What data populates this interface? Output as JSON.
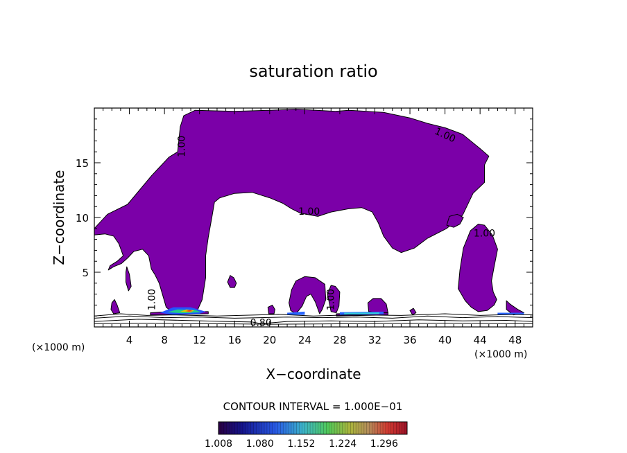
{
  "chart_data": {
    "type": "heatmap",
    "title": "saturation ratio",
    "xlabel": "X−coordinate",
    "ylabel": "Z−coordinate",
    "x_unit_left": "(×1000 m)",
    "x_unit_right": "(×1000 m)",
    "xlim": [
      0,
      50
    ],
    "ylim": [
      0,
      20
    ],
    "x_ticks": [
      4,
      8,
      12,
      16,
      20,
      24,
      28,
      32,
      36,
      40,
      44,
      48
    ],
    "y_ticks": [
      5,
      10,
      15
    ],
    "x_tick_labels": [
      "4",
      "8",
      "12",
      "16",
      "20",
      "24",
      "28",
      "32",
      "36",
      "40",
      "44",
      "48"
    ],
    "y_tick_labels": [
      "5",
      "10",
      "15"
    ],
    "contour_interval_text": "CONTOUR INTERVAL = 1.000E−01",
    "colorbar": {
      "min": 1.008,
      "max": 1.336,
      "tick_values": [
        1.008,
        1.08,
        1.152,
        1.224,
        1.296
      ],
      "tick_labels": [
        "1.008",
        "1.080",
        "1.152",
        "1.224",
        "1.296"
      ]
    },
    "contour_labels": [
      {
        "text": "1.00",
        "x": 10.0,
        "z": 16.5,
        "rotate": -90
      },
      {
        "text": "1.00",
        "x": 40.0,
        "z": 17.5,
        "rotate": 25
      },
      {
        "text": "1.00",
        "x": 24.5,
        "z": 10.5,
        "rotate": 0
      },
      {
        "text": "1.00",
        "x": 44.5,
        "z": 8.5,
        "rotate": 0
      },
      {
        "text": "1.00",
        "x": 6.6,
        "z": 2.5,
        "rotate": -90
      },
      {
        "text": "1.00",
        "x": 27.0,
        "z": 2.5,
        "rotate": -90
      },
      {
        "text": "0.80",
        "x": 19.0,
        "z": 0.35,
        "rotate": 0
      }
    ],
    "regions": [
      {
        "name": "upper-cloud",
        "value": 1.008,
        "color": "#7b00a8",
        "points": [
          [
            0,
            9
          ],
          [
            1.5,
            10.3
          ],
          [
            3.8,
            11.2
          ],
          [
            6.5,
            13.8
          ],
          [
            8.5,
            15.5
          ],
          [
            9.5,
            16
          ],
          [
            9.8,
            18.3
          ],
          [
            10.2,
            19.3
          ],
          [
            11.5,
            19.8
          ],
          [
            16,
            19.7
          ],
          [
            20,
            19.8
          ],
          [
            23,
            19.9
          ],
          [
            27.5,
            19.7
          ],
          [
            29,
            19.8
          ],
          [
            33,
            19.6
          ],
          [
            36,
            19.1
          ],
          [
            38,
            18.6
          ],
          [
            40,
            18.2
          ],
          [
            42,
            17.6
          ],
          [
            44,
            16.3
          ],
          [
            45,
            15.6
          ],
          [
            44.5,
            14.8
          ],
          [
            44.5,
            13.2
          ],
          [
            43.2,
            12.2
          ],
          [
            42,
            10.2
          ],
          [
            40.2,
            9
          ],
          [
            38,
            8.1
          ],
          [
            36.5,
            7.2
          ],
          [
            35,
            6.8
          ],
          [
            34,
            7.2
          ],
          [
            33,
            8.3
          ],
          [
            32.4,
            9.5
          ],
          [
            31.7,
            10.5
          ],
          [
            30.5,
            10.9
          ],
          [
            29,
            10.8
          ],
          [
            27,
            10.5
          ],
          [
            25.5,
            10.1
          ],
          [
            23.5,
            10.4
          ],
          [
            22.5,
            10.8
          ],
          [
            21.5,
            11.3
          ],
          [
            20,
            11.8
          ],
          [
            18,
            12.3
          ],
          [
            16,
            12.2
          ],
          [
            14.3,
            11.8
          ],
          [
            13.7,
            11.4
          ],
          [
            13.4,
            10
          ],
          [
            13,
            8.2
          ],
          [
            12.7,
            6.5
          ],
          [
            12.7,
            4.5
          ],
          [
            12.3,
            2.5
          ],
          [
            11.8,
            1.6
          ],
          [
            11,
            1.3
          ],
          [
            9,
            1.3
          ],
          [
            8.2,
            1.8
          ],
          [
            7.8,
            2.9
          ],
          [
            7.4,
            4
          ],
          [
            6.9,
            4.8
          ],
          [
            6.5,
            5.3
          ],
          [
            6.2,
            6.5
          ],
          [
            5.5,
            7.1
          ],
          [
            4.5,
            6.9
          ],
          [
            3.8,
            6.3
          ],
          [
            3.1,
            5.8
          ],
          [
            2.2,
            5.5
          ],
          [
            1.6,
            5.2
          ],
          [
            1.8,
            5.6
          ],
          [
            2.6,
            6
          ],
          [
            3.3,
            6.5
          ],
          [
            2.8,
            7.6
          ],
          [
            2.2,
            8.3
          ],
          [
            1.2,
            8.5
          ],
          [
            0,
            8.4
          ]
        ]
      },
      {
        "name": "patch-1",
        "value": 1.008,
        "color": "#7b00a8",
        "points": [
          [
            3.7,
            5.5
          ],
          [
            4,
            4.8
          ],
          [
            4.2,
            3.7
          ],
          [
            3.9,
            3.3
          ],
          [
            3.6,
            4.1
          ],
          [
            3.6,
            5
          ]
        ]
      },
      {
        "name": "patch-2",
        "value": 1.008,
        "color": "#7b00a8",
        "points": [
          [
            15.5,
            4.7
          ],
          [
            15.9,
            4.5
          ],
          [
            16.2,
            4
          ],
          [
            16,
            3.6
          ],
          [
            15.5,
            3.6
          ],
          [
            15.2,
            4.1
          ]
        ]
      },
      {
        "name": "patch-3",
        "value": 1.008,
        "color": "#7b00a8",
        "points": [
          [
            22.5,
            3.4
          ],
          [
            23,
            4.2
          ],
          [
            24,
            4.6
          ],
          [
            25.2,
            4.5
          ],
          [
            26.3,
            3.9
          ],
          [
            26.4,
            2.5
          ],
          [
            26,
            1.6
          ],
          [
            25.7,
            1.2
          ],
          [
            25.2,
            2.3
          ],
          [
            24.7,
            3
          ],
          [
            24.2,
            2.8
          ],
          [
            23.7,
            1.9
          ],
          [
            23,
            1.2
          ],
          [
            22.4,
            1.5
          ],
          [
            22.2,
            2.2
          ]
        ]
      },
      {
        "name": "patch-4",
        "value": 1.008,
        "color": "#7b00a8",
        "points": [
          [
            26.6,
            3
          ],
          [
            27,
            3.8
          ],
          [
            27.5,
            3.7
          ],
          [
            28,
            3.2
          ],
          [
            27.9,
            1.9
          ],
          [
            27.6,
            1.3
          ],
          [
            27,
            1.4
          ]
        ]
      },
      {
        "name": "patch-5",
        "value": 1.008,
        "color": "#7b00a8",
        "points": [
          [
            31.2,
            2.2
          ],
          [
            31.8,
            2.6
          ],
          [
            32.7,
            2.6
          ],
          [
            33.3,
            2.1
          ],
          [
            33.5,
            1.3
          ],
          [
            32.3,
            1.3
          ],
          [
            31.3,
            1.4
          ]
        ]
      },
      {
        "name": "patch-6",
        "value": 1.008,
        "color": "#7b00a8",
        "points": [
          [
            40.2,
            9.3
          ],
          [
            40.5,
            10.1
          ],
          [
            41.4,
            10.3
          ],
          [
            42.1,
            10
          ],
          [
            41.7,
            9.4
          ],
          [
            41,
            9.1
          ]
        ]
      },
      {
        "name": "right-cloud",
        "value": 1.008,
        "color": "#7b00a8",
        "points": [
          [
            41.5,
            3.5
          ],
          [
            41.7,
            5.2
          ],
          [
            42.1,
            7.2
          ],
          [
            42.9,
            8.8
          ],
          [
            43.8,
            9.4
          ],
          [
            44.5,
            9.3
          ],
          [
            45.4,
            8.4
          ],
          [
            46,
            7.1
          ],
          [
            45.6,
            5.5
          ],
          [
            45.3,
            4.2
          ],
          [
            45.5,
            3.2
          ],
          [
            45.9,
            2.5
          ],
          [
            45.6,
            2
          ],
          [
            44.8,
            1.5
          ],
          [
            43.8,
            1.4
          ],
          [
            43,
            1.8
          ],
          [
            42.3,
            2.4
          ]
        ]
      },
      {
        "name": "patch-7",
        "value": 1.008,
        "color": "#7b00a8",
        "points": [
          [
            47,
            2.4
          ],
          [
            47.4,
            2.1
          ],
          [
            48.3,
            1.6
          ],
          [
            49,
            1.3
          ],
          [
            47.8,
            1.1
          ],
          [
            47,
            1.6
          ]
        ]
      },
      {
        "name": "patch-8",
        "value": 1.008,
        "color": "#7b00a8",
        "points": [
          [
            2,
            2.2
          ],
          [
            2.3,
            2.5
          ],
          [
            2.6,
            2
          ],
          [
            2.9,
            1.3
          ],
          [
            2.2,
            1.2
          ],
          [
            1.9,
            1.6
          ]
        ]
      },
      {
        "name": "patch-9",
        "value": 1.008,
        "color": "#7b00a8",
        "points": [
          [
            19.8,
            1.8
          ],
          [
            20.3,
            2
          ],
          [
            20.6,
            1.6
          ],
          [
            20.5,
            1.2
          ],
          [
            19.9,
            1.2
          ]
        ]
      },
      {
        "name": "patch-10",
        "value": 1.008,
        "color": "#7b00a8",
        "points": [
          [
            36,
            1.5
          ],
          [
            36.4,
            1.7
          ],
          [
            36.7,
            1.3
          ],
          [
            36.3,
            1.1
          ]
        ]
      },
      {
        "name": "low-band",
        "value": 1.008,
        "color": "#7b00a8",
        "points": [
          [
            6.4,
            1.3
          ],
          [
            8.5,
            1.4
          ],
          [
            13,
            1.4
          ],
          [
            13,
            1.2
          ],
          [
            8,
            1.1
          ],
          [
            6.4,
            1.1
          ]
        ]
      },
      {
        "name": "low-band-mid",
        "value": 1.008,
        "color": "#7b00a8",
        "points": [
          [
            27.6,
            1.2
          ],
          [
            33.5,
            1.3
          ],
          [
            33.5,
            1.1
          ],
          [
            27.6,
            1.0
          ]
        ]
      },
      {
        "name": "bright-core-1",
        "value": 1.1,
        "color": "#2255ff",
        "points": [
          [
            7.5,
            1.3
          ],
          [
            9,
            1.8
          ],
          [
            11,
            1.8
          ],
          [
            12.7,
            1.4
          ],
          [
            12,
            1.2
          ],
          [
            9,
            1.1
          ]
        ]
      },
      {
        "name": "bright-core-2",
        "value": 1.17,
        "color": "#22cc88",
        "points": [
          [
            8.3,
            1.35
          ],
          [
            9.5,
            1.6
          ],
          [
            11.5,
            1.55
          ],
          [
            12.2,
            1.35
          ],
          [
            10,
            1.25
          ]
        ]
      },
      {
        "name": "bright-core-3",
        "value": 1.25,
        "color": "#ddcc00",
        "points": [
          [
            9.8,
            1.4
          ],
          [
            10.5,
            1.6
          ],
          [
            11.4,
            1.5
          ],
          [
            11,
            1.35
          ]
        ]
      },
      {
        "name": "bright-core-4",
        "value": 1.3,
        "color": "#ff3311",
        "points": [
          [
            10.4,
            1.45
          ],
          [
            10.9,
            1.55
          ],
          [
            11.2,
            1.45
          ],
          [
            10.8,
            1.4
          ]
        ]
      },
      {
        "name": "blue-band-mid",
        "value": 1.09,
        "color": "#2a66ff",
        "points": [
          [
            28,
            1.35
          ],
          [
            33,
            1.4
          ],
          [
            33,
            1.15
          ],
          [
            28,
            1.1
          ]
        ]
      },
      {
        "name": "cyan-band-mid",
        "value": 1.12,
        "color": "#33ccdd",
        "points": [
          [
            28.5,
            1.3
          ],
          [
            32.5,
            1.32
          ],
          [
            32.5,
            1.18
          ],
          [
            28.5,
            1.16
          ]
        ]
      },
      {
        "name": "blue-band-left",
        "value": 1.07,
        "color": "#2a66ff",
        "points": [
          [
            22,
            1.3
          ],
          [
            24,
            1.4
          ],
          [
            24,
            1.1
          ],
          [
            22,
            1.1
          ]
        ]
      },
      {
        "name": "blue-band-right",
        "value": 1.07,
        "color": "#2a66ff",
        "points": [
          [
            46,
            1.3
          ],
          [
            49,
            1.3
          ],
          [
            49,
            1.1
          ],
          [
            46,
            1.1
          ]
        ]
      }
    ],
    "contour_lines": [
      {
        "name": "near-ground-1",
        "points": [
          [
            0,
            0.5
          ],
          [
            5,
            0.7
          ],
          [
            10,
            0.6
          ],
          [
            15,
            0.5
          ],
          [
            18,
            0.45
          ],
          [
            19,
            0.3
          ],
          [
            22,
            0.5
          ],
          [
            27,
            0.55
          ],
          [
            32,
            0.5
          ],
          [
            37,
            0.65
          ],
          [
            42,
            0.55
          ],
          [
            47,
            0.6
          ],
          [
            50,
            0.5
          ]
        ]
      },
      {
        "name": "near-ground-2",
        "points": [
          [
            0,
            0.8
          ],
          [
            4,
            1.0
          ],
          [
            8,
            0.85
          ],
          [
            12,
            0.9
          ],
          [
            16,
            0.8
          ],
          [
            22,
            0.9
          ],
          [
            26,
            0.85
          ],
          [
            30,
            0.9
          ],
          [
            34,
            0.8
          ],
          [
            38,
            1.0
          ],
          [
            42,
            0.85
          ],
          [
            46,
            0.95
          ],
          [
            50,
            0.85
          ]
        ]
      },
      {
        "name": "near-ground-3",
        "points": [
          [
            0,
            1.0
          ],
          [
            3,
            1.2
          ],
          [
            6,
            1.05
          ],
          [
            9,
            1.1
          ],
          [
            14,
            1.0
          ],
          [
            21,
            1.15
          ],
          [
            25,
            1.0
          ],
          [
            29,
            1.1
          ],
          [
            35,
            1.05
          ],
          [
            40,
            1.2
          ],
          [
            44,
            1.05
          ],
          [
            48,
            1.15
          ],
          [
            50,
            1.1
          ]
        ]
      },
      {
        "name": "near-ground-4",
        "points": [
          [
            0,
            0.3
          ],
          [
            6,
            0.35
          ],
          [
            12,
            0.3
          ],
          [
            20,
            0.25
          ],
          [
            30,
            0.3
          ],
          [
            40,
            0.35
          ],
          [
            50,
            0.3
          ]
        ]
      }
    ]
  }
}
